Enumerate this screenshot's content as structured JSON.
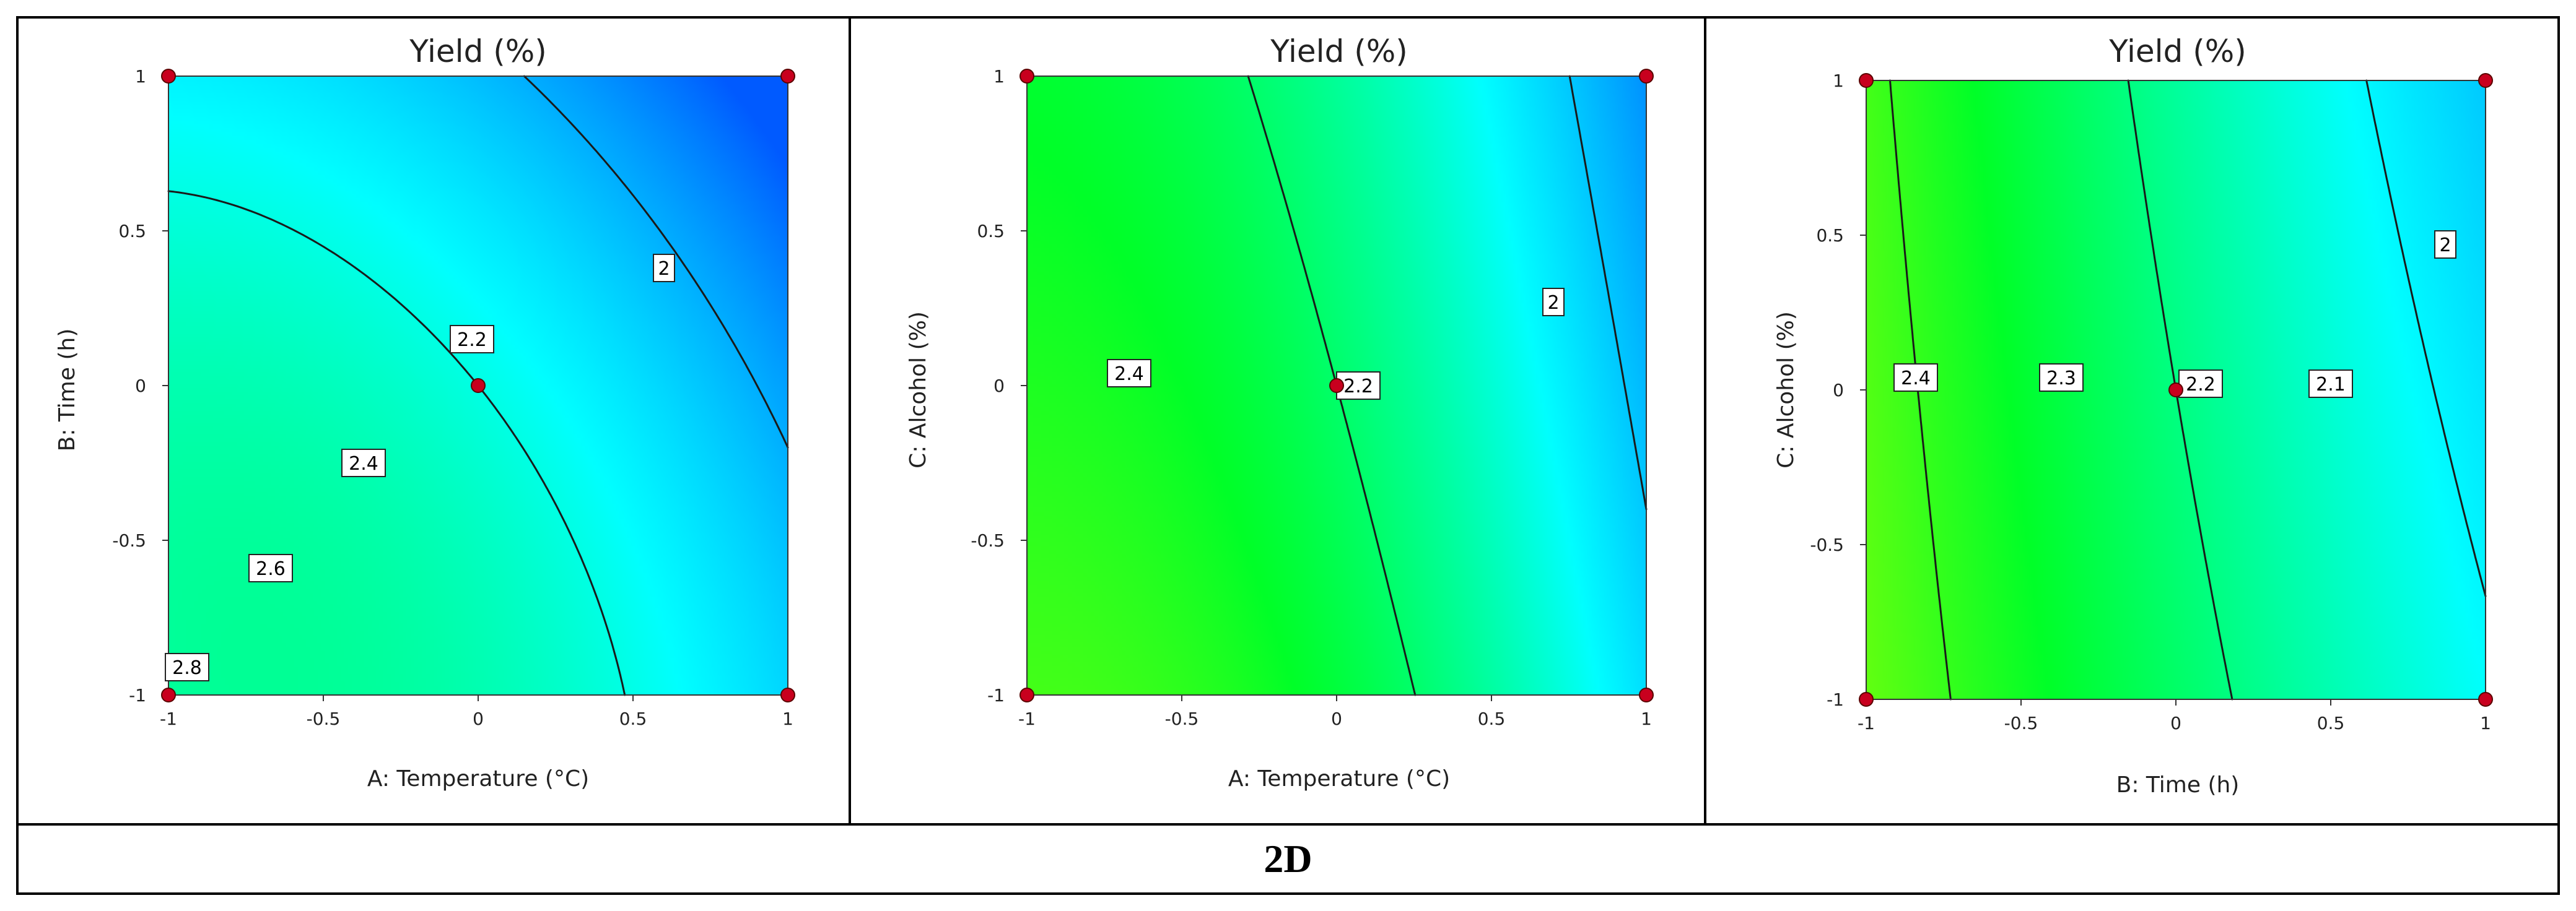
{
  "chart_data": [
    {
      "type": "contour",
      "title": "Yield (%)",
      "xlabel": "A: Temperature (°C)",
      "ylabel": "B: Time (h)",
      "xlim": [
        -1,
        1
      ],
      "ylim": [
        -1,
        1
      ],
      "ticks": [
        "-1",
        "-0.5",
        "0",
        "0.5",
        "1"
      ],
      "z_range": [
        1.83,
        2.84
      ],
      "contour_levels": [
        "2",
        "2.2",
        "2.4",
        "2.6",
        "2.8"
      ],
      "design_points": [
        [
          -1,
          -1
        ],
        [
          -1,
          1
        ],
        [
          1,
          -1
        ],
        [
          1,
          1
        ],
        [
          0,
          0
        ]
      ]
    },
    {
      "type": "contour",
      "title": "Yield (%)",
      "xlabel": "A: Temperature (°C)",
      "ylabel": "C: Alcohol (%)",
      "xlim": [
        -1,
        1
      ],
      "ylim": [
        -1,
        1
      ],
      "ticks": [
        "-1",
        "-0.5",
        "0",
        "0.5",
        "1"
      ],
      "z_range": [
        1.86,
        2.5
      ],
      "contour_levels": [
        "2",
        "2.2",
        "2.4"
      ],
      "design_points": [
        [
          -1,
          -1
        ],
        [
          -1,
          1
        ],
        [
          1,
          -1
        ],
        [
          1,
          1
        ],
        [
          0,
          0
        ]
      ]
    },
    {
      "type": "contour",
      "title": "Yield (%)",
      "xlabel": "B: Time (h)",
      "ylabel": "C: Alcohol (%)",
      "xlim": [
        -1,
        1
      ],
      "ylim": [
        -1,
        1
      ],
      "ticks": [
        "-1",
        "-0.5",
        "0",
        "0.5",
        "1"
      ],
      "z_range": [
        1.93,
        2.47
      ],
      "contour_levels": [
        "2",
        "2.1",
        "2.2",
        "2.3",
        "2.4"
      ],
      "design_points": [
        [
          -1,
          -1
        ],
        [
          -1,
          1
        ],
        [
          1,
          -1
        ],
        [
          1,
          1
        ],
        [
          0,
          0
        ]
      ]
    }
  ],
  "caption": "2D"
}
